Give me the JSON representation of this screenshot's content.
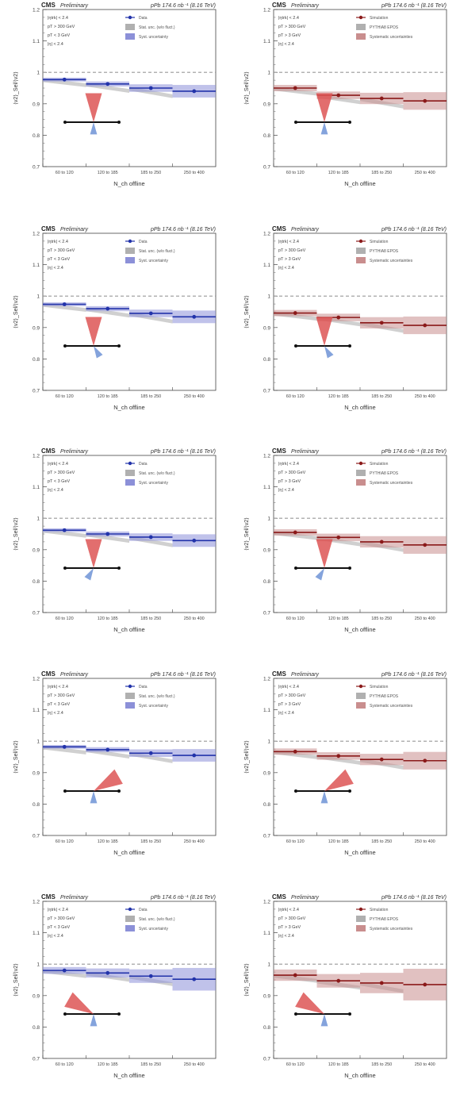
{
  "header": {
    "experiment": "CMS",
    "status": "Preliminary",
    "lumi": "pPb 174.6 nb⁻¹ (8.16 TeV)"
  },
  "axes": {
    "xlabel": "N_ch offline",
    "ylabel": "⟨v2⟩_Sel/⟨v2⟩",
    "yticks": [
      "1.2",
      "1.1",
      "1",
      "0.9",
      "0.8",
      "0.7"
    ],
    "xticks": [
      "60 to 120",
      "120 to 185",
      "185 to 250",
      "250 to 400"
    ]
  },
  "cuts_left": [
    "|ηtrk| < 2.4",
    "pT > 300 GeV",
    "pT < 3 GeV",
    "|η| < 2.4"
  ],
  "cuts_right": [
    "|ηtrk| < 2.4",
    "pT > 300 GeV",
    "pT > 3 GeV",
    "|η| < 2.4"
  ],
  "legend_left": [
    "Data",
    "Stat. unc. (w/o fluct.)",
    "Syst. uncertainty"
  ],
  "legend_right": [
    "Simulation",
    "PYTHIA8 EPOS",
    "Systematic uncertainties"
  ],
  "colors": {
    "blue": "#2233aa",
    "blue_band": "#8c90d8",
    "red": "#8b1a1a",
    "red_band": "#c98e8e",
    "gray_band": "#b0b0b0",
    "cone_red": "#dd5555",
    "cone_blue": "#6f93d6"
  },
  "chart_data": [
    {
      "type": "line",
      "series": [
        {
          "values": [
            0.977,
            0.963,
            0.95,
            0.94
          ]
        }
      ],
      "ylim": [
        0.7,
        1.2
      ]
    },
    {
      "type": "line",
      "series": [
        {
          "values": [
            0.95,
            0.927,
            0.917,
            0.909
          ]
        }
      ],
      "ylim": [
        0.7,
        1.2
      ]
    },
    {
      "type": "line",
      "series": [
        {
          "values": [
            0.974,
            0.96,
            0.945,
            0.934
          ]
        }
      ],
      "ylim": [
        0.7,
        1.2
      ]
    },
    {
      "type": "line",
      "series": [
        {
          "values": [
            0.946,
            0.932,
            0.915,
            0.907
          ]
        }
      ],
      "ylim": [
        0.7,
        1.2
      ]
    },
    {
      "type": "line",
      "series": [
        {
          "values": [
            0.962,
            0.95,
            0.94,
            0.929
          ]
        }
      ],
      "ylim": [
        0.7,
        1.2
      ]
    },
    {
      "type": "line",
      "series": [
        {
          "values": [
            0.955,
            0.939,
            0.925,
            0.915
          ]
        }
      ],
      "ylim": [
        0.7,
        1.2
      ]
    },
    {
      "type": "line",
      "series": [
        {
          "values": [
            0.982,
            0.973,
            0.962,
            0.955
          ]
        }
      ],
      "ylim": [
        0.7,
        1.2
      ]
    },
    {
      "type": "line",
      "series": [
        {
          "values": [
            0.967,
            0.953,
            0.942,
            0.938
          ]
        }
      ],
      "ylim": [
        0.7,
        1.2
      ]
    },
    {
      "type": "line",
      "series": [
        {
          "values": [
            0.98,
            0.972,
            0.962,
            0.952
          ]
        }
      ],
      "ylim": [
        0.7,
        1.2
      ]
    },
    {
      "type": "line",
      "series": [
        {
          "values": [
            0.965,
            0.947,
            0.94,
            0.935
          ]
        }
      ],
      "ylim": [
        0.7,
        1.2
      ]
    }
  ]
}
